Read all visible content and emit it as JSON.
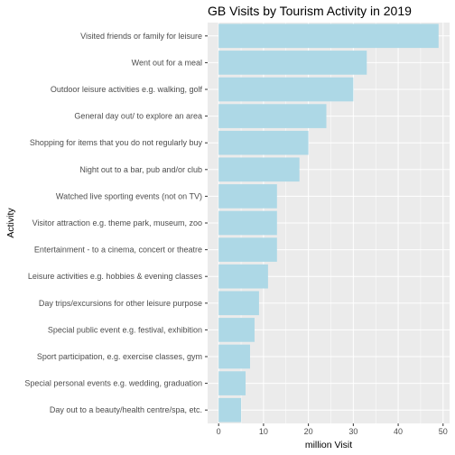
{
  "chart_data": {
    "type": "bar",
    "orientation": "horizontal",
    "title": "GB Visits by Tourism Activity in 2019",
    "xlabel": "million Visit",
    "ylabel": "Activity",
    "xlim": [
      0,
      50
    ],
    "x_ticks": [
      "0",
      "10",
      "20",
      "30",
      "40",
      "50"
    ],
    "grid": true,
    "bar_color": "#add8e6",
    "panel_color": "#ebebeb",
    "categories": [
      "Visited friends or family for leisure",
      "Went out for a meal",
      "Outdoor leisure activities e.g. walking, golf",
      "General day out/ to explore an area",
      "Shopping for items that you do not regularly buy",
      "Night out to a bar, pub and/or club",
      "Watched live sporting events (not on TV)",
      "Visitor attraction e.g. theme park, museum, zoo",
      "Entertainment - to a cinema, concert or theatre",
      "Leisure activities e.g. hobbies & evening classes",
      "Day trips/excursions for other leisure purpose",
      "Special public event e.g. festival, exhibition",
      "Sport participation, e.g. exercise classes, gym",
      "Special personal events e.g. wedding, graduation",
      "Day out to a beauty/health centre/spa, etc."
    ],
    "values": [
      49,
      33,
      30,
      24,
      20,
      18,
      13,
      13,
      13,
      11,
      9,
      8,
      7,
      6,
      5
    ]
  }
}
